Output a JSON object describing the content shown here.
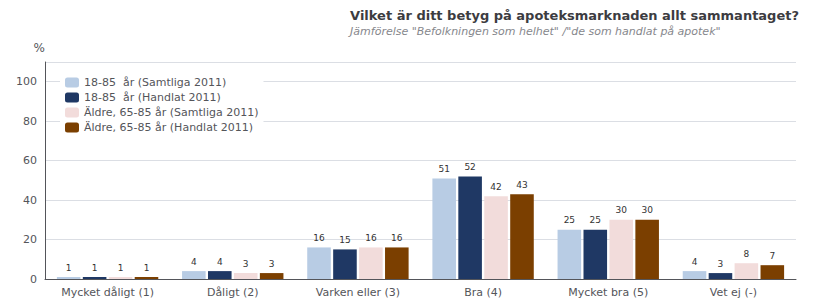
{
  "chart_data": {
    "type": "bar",
    "title": "Vilket är ditt betyg på apoteksmarknaden allt sammantaget?",
    "subtitle": "Jämförelse \"Befolkningen som helhet\" /\"de som handlat på apotek\"",
    "ylabel": "%",
    "categories": [
      "Mycket dåligt (1)",
      "Dåligt (2)",
      "Varken eller (3)",
      "Bra (4)",
      "Mycket bra (5)",
      "Vet ej (-)"
    ],
    "series": [
      {
        "name": "18-85  år (Samtliga 2011)",
        "color": "#b8cce4",
        "values": [
          1,
          4,
          16,
          51,
          25,
          4
        ]
      },
      {
        "name": "18-85  år (Handlat 2011)",
        "color": "#1f3864",
        "values": [
          1,
          4,
          15,
          52,
          25,
          3
        ]
      },
      {
        "name": "Äldre, 65-85 år (Samtliga 2011)",
        "color": "#f2dcdb",
        "values": [
          1,
          3,
          16,
          42,
          30,
          8
        ]
      },
      {
        "name": "Äldre, 65-85 år (Handlat 2011)",
        "color": "#7b3f00",
        "values": [
          1,
          3,
          16,
          43,
          30,
          7
        ]
      }
    ],
    "ylim": [
      0,
      110
    ],
    "yticks": [
      0,
      20,
      40,
      60,
      80,
      100
    ],
    "grid": true,
    "legend": "upper left",
    "data_labels": true
  }
}
